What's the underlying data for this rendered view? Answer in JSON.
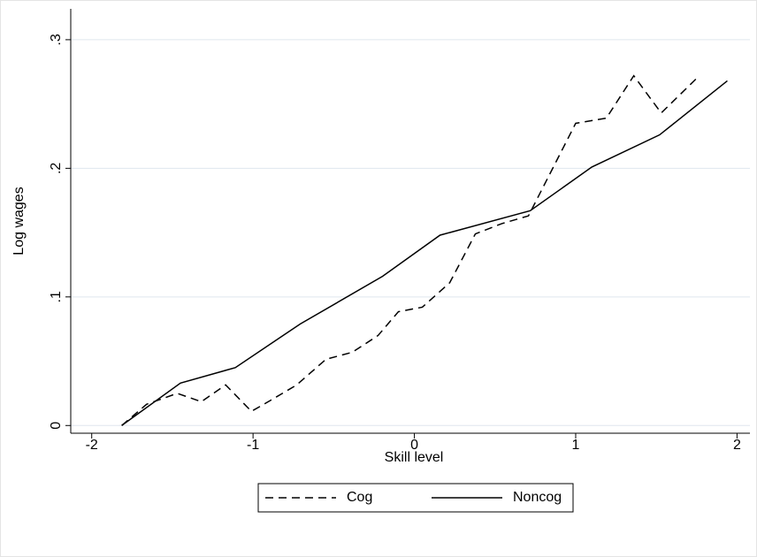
{
  "chart_data": {
    "type": "line",
    "x_label": "Skill level",
    "y_label": "Log wages",
    "xlim": [
      -2.13,
      2.08
    ],
    "xticks": [
      -2,
      -1,
      0,
      1,
      2
    ],
    "ylim": [
      -0.006,
      0.324
    ],
    "yticks": [
      {
        "value": 0,
        "label": "0"
      },
      {
        "value": 0.1,
        "label": ".1"
      },
      {
        "value": 0.2,
        "label": ".2"
      },
      {
        "value": 0.3,
        "label": ".3"
      }
    ],
    "grid": true,
    "series": [
      {
        "name": "Cog",
        "color": "#000000",
        "line_style": "dashed",
        "x": [
          -1.814,
          -1.66,
          -1.47,
          -1.32,
          -1.17,
          -1.01,
          -0.877,
          -0.729,
          -0.548,
          -0.384,
          -0.225,
          -0.099,
          0.049,
          0.219,
          0.378,
          0.542,
          0.707,
          1.0,
          1.19,
          1.36,
          1.53,
          1.75
        ],
        "values": [
          0,
          0.0165,
          0.025,
          0.0185,
          0.0316,
          0.011,
          0.0206,
          0.0316,
          0.0515,
          0.057,
          0.07,
          0.0885,
          0.092,
          0.111,
          0.149,
          0.157,
          0.163,
          0.235,
          0.239,
          0.272,
          0.243,
          0.27
        ]
      },
      {
        "name": "Noncog",
        "color": "#000000",
        "line_style": "solid",
        "x": [
          -1.814,
          -1.45,
          -1.11,
          -0.707,
          -0.197,
          0.159,
          0.718,
          1.1,
          1.52,
          1.94
        ],
        "values": [
          0,
          0.033,
          0.045,
          0.079,
          0.116,
          0.148,
          0.167,
          0.201,
          0.226,
          0.268
        ]
      }
    ]
  }
}
